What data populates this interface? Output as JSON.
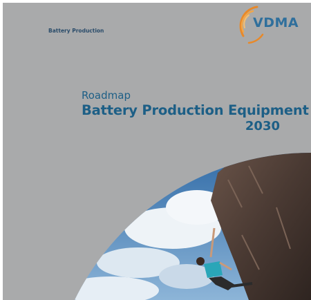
{
  "header": {
    "label": "Battery Production",
    "logo": "VDMA"
  },
  "title": {
    "line1": "Roadmap",
    "line2": "Battery Production Equipment",
    "line3": "2030"
  }
}
